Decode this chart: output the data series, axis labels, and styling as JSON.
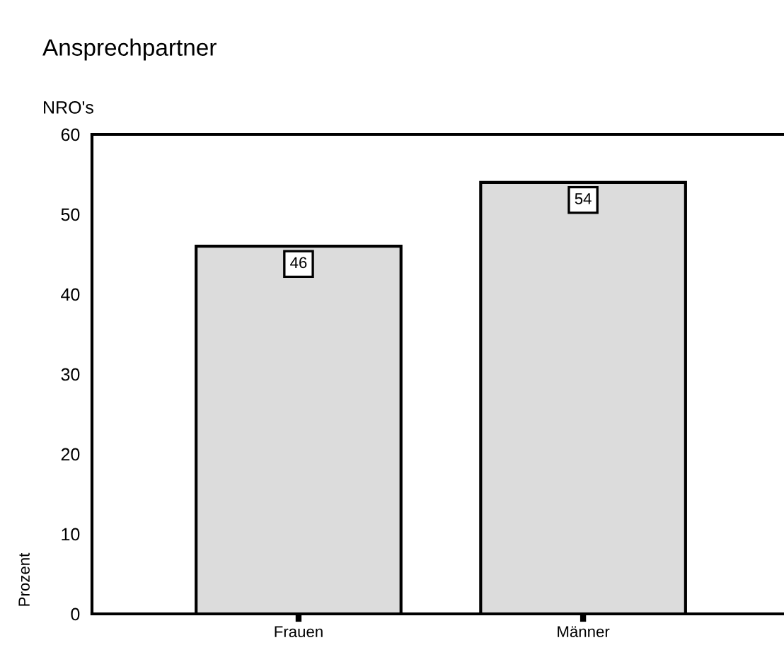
{
  "chart_data": {
    "type": "bar",
    "title": "Ansprechpartner",
    "subtitle": "NRO's",
    "ylabel": "Prozent",
    "categories": [
      "Frauen",
      "Männer"
    ],
    "values": [
      46,
      54
    ],
    "color": "#dcdcdc",
    "ylim": [
      0,
      60
    ],
    "yticks": [
      0,
      10,
      20,
      30,
      40,
      50,
      60
    ],
    "grid": false,
    "data_labels": true
  }
}
